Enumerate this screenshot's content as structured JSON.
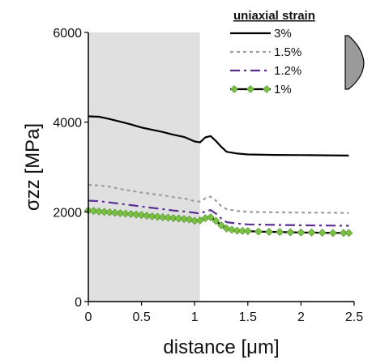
{
  "chart_data": {
    "type": "line",
    "xlabel": "distance [μm]",
    "ylabel": "σzz [MPa]",
    "xlim": [
      0,
      2.5
    ],
    "ylim": [
      0,
      6000
    ],
    "xticks": [
      "0",
      "0.5",
      "1",
      "1.5",
      "2",
      "2.5"
    ],
    "yticks": [
      "0",
      "2000",
      "4000",
      "6000"
    ],
    "grid": false,
    "shaded_region": {
      "x_from": 0,
      "x_to": 1.05,
      "color": "#e0e0e0"
    },
    "legend": {
      "title": "uniaxial strain",
      "placement": "top-right"
    },
    "series": [
      {
        "name": "3%",
        "color": "#000000",
        "style": "solid",
        "x": [
          0,
          0.1,
          0.2,
          0.3,
          0.4,
          0.5,
          0.6,
          0.7,
          0.8,
          0.9,
          1.0,
          1.05,
          1.1,
          1.15,
          1.2,
          1.25,
          1.3,
          1.4,
          1.5,
          1.75,
          2.0,
          2.25,
          2.45
        ],
        "y": [
          4130,
          4120,
          4070,
          4010,
          3950,
          3880,
          3830,
          3780,
          3720,
          3670,
          3570,
          3550,
          3660,
          3690,
          3580,
          3450,
          3340,
          3300,
          3280,
          3270,
          3265,
          3260,
          3255
        ]
      },
      {
        "name": "1.5%",
        "color": "#9e9e9e",
        "style": "dotted",
        "x": [
          0,
          0.1,
          0.2,
          0.3,
          0.4,
          0.5,
          0.6,
          0.7,
          0.8,
          0.9,
          1.0,
          1.05,
          1.1,
          1.15,
          1.2,
          1.25,
          1.3,
          1.4,
          1.5,
          1.75,
          2.0,
          2.25,
          2.45
        ],
        "y": [
          2600,
          2590,
          2560,
          2510,
          2470,
          2430,
          2400,
          2370,
          2330,
          2300,
          2240,
          2230,
          2300,
          2340,
          2250,
          2130,
          2060,
          2020,
          2000,
          1990,
          1985,
          1980,
          1975
        ]
      },
      {
        "name": "1.2%",
        "color": "#5a2d91",
        "style": "dashdot",
        "x": [
          0,
          0.1,
          0.2,
          0.3,
          0.4,
          0.5,
          0.6,
          0.7,
          0.8,
          0.9,
          1.0,
          1.05,
          1.1,
          1.15,
          1.2,
          1.25,
          1.3,
          1.4,
          1.5,
          1.75,
          2.0,
          2.25,
          2.45
        ],
        "y": [
          2250,
          2240,
          2210,
          2180,
          2150,
          2120,
          2090,
          2060,
          2030,
          2010,
          1980,
          1960,
          2010,
          2040,
          1960,
          1850,
          1770,
          1740,
          1720,
          1710,
          1700,
          1695,
          1690
        ]
      },
      {
        "name": "1%",
        "color": "#000000",
        "marker_color": "#7ac143",
        "style": "solid-diamond",
        "x": [
          0,
          0.05,
          0.1,
          0.15,
          0.2,
          0.25,
          0.3,
          0.35,
          0.4,
          0.45,
          0.5,
          0.55,
          0.6,
          0.65,
          0.7,
          0.75,
          0.8,
          0.85,
          0.9,
          0.95,
          1.0,
          1.05,
          1.1,
          1.15,
          1.2,
          1.25,
          1.3,
          1.35,
          1.4,
          1.45,
          1.5,
          1.6,
          1.7,
          1.8,
          1.9,
          2.0,
          2.1,
          2.2,
          2.3,
          2.4,
          2.45
        ],
        "y": [
          2030,
          2020,
          2010,
          2000,
          1990,
          1980,
          1970,
          1960,
          1950,
          1940,
          1930,
          1915,
          1900,
          1890,
          1880,
          1870,
          1860,
          1850,
          1840,
          1830,
          1800,
          1810,
          1860,
          1880,
          1800,
          1700,
          1630,
          1600,
          1580,
          1575,
          1570,
          1560,
          1555,
          1550,
          1545,
          1540,
          1540,
          1535,
          1530,
          1530,
          1530
        ]
      }
    ]
  }
}
